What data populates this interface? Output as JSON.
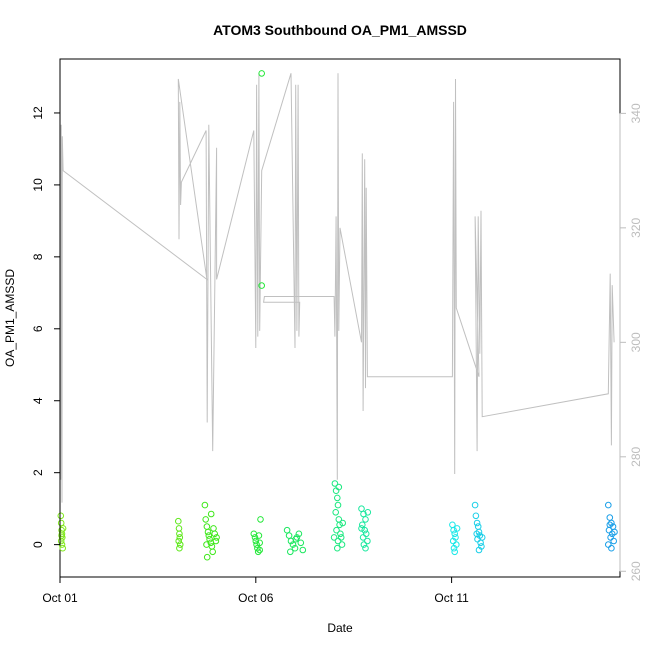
{
  "chart_data": {
    "type": "scatter",
    "title": "ATOM3 Southbound OA_PM1_AMSSD",
    "xlabel": "Date",
    "ylabel": "OA_PM1_AMSSD",
    "y2label": "",
    "xlim": [
      0.0,
      14.3
    ],
    "ylim": [
      -0.9,
      13.5
    ],
    "y2lim": [
      259,
      349.5
    ],
    "x_ticks": [
      {
        "pos": 0,
        "label": "Oct 01"
      },
      {
        "pos": 5,
        "label": "Oct 06"
      },
      {
        "pos": 10,
        "label": "Oct 11"
      }
    ],
    "y_ticks": [
      0,
      2,
      4,
      6,
      8,
      10,
      12
    ],
    "y2_ticks": [
      260,
      280,
      300,
      320,
      340
    ],
    "colors": {
      "secondary_line": "#c0c0c0",
      "right_axis": "#bdbdbd"
    },
    "points": [
      {
        "x": 0.02,
        "y": 0.8,
        "color": "#7fe81a"
      },
      {
        "x": 0.03,
        "y": 0.6,
        "color": "#7fe81a"
      },
      {
        "x": 0.04,
        "y": 0.4,
        "color": "#7fe81a"
      },
      {
        "x": 0.05,
        "y": 0.3,
        "color": "#7fe81a"
      },
      {
        "x": 0.06,
        "y": 0.2,
        "color": "#7fe81a"
      },
      {
        "x": 0.03,
        "y": 0.1,
        "color": "#7fe81a"
      },
      {
        "x": 0.05,
        "y": 0.0,
        "color": "#7fe81a"
      },
      {
        "x": 0.07,
        "y": -0.1,
        "color": "#7fe81a"
      },
      {
        "x": 0.04,
        "y": 0.25,
        "color": "#7fe81a"
      },
      {
        "x": 0.08,
        "y": 0.45,
        "color": "#7fe81a"
      },
      {
        "x": 3.02,
        "y": 0.65,
        "color": "#5ee81a"
      },
      {
        "x": 3.04,
        "y": 0.45,
        "color": "#5ee81a"
      },
      {
        "x": 3.05,
        "y": 0.3,
        "color": "#5ee81a"
      },
      {
        "x": 3.06,
        "y": 0.2,
        "color": "#5ee81a"
      },
      {
        "x": 3.03,
        "y": 0.1,
        "color": "#5ee81a"
      },
      {
        "x": 3.07,
        "y": 0.0,
        "color": "#5ee81a"
      },
      {
        "x": 3.05,
        "y": -0.1,
        "color": "#5ee81a"
      },
      {
        "x": 3.7,
        "y": 1.1,
        "color": "#3ee81a"
      },
      {
        "x": 3.72,
        "y": 0.7,
        "color": "#3ee81a"
      },
      {
        "x": 3.75,
        "y": 0.5,
        "color": "#3ee81a"
      },
      {
        "x": 3.78,
        "y": 0.35,
        "color": "#3ee81a"
      },
      {
        "x": 3.8,
        "y": 0.25,
        "color": "#3ee81a"
      },
      {
        "x": 3.82,
        "y": 0.15,
        "color": "#3ee81a"
      },
      {
        "x": 3.85,
        "y": 0.05,
        "color": "#3ee81a"
      },
      {
        "x": 3.88,
        "y": -0.05,
        "color": "#3ee81a"
      },
      {
        "x": 3.9,
        "y": -0.2,
        "color": "#3ee81a"
      },
      {
        "x": 3.76,
        "y": -0.35,
        "color": "#3ee81a"
      },
      {
        "x": 3.92,
        "y": 0.45,
        "color": "#3ee81a"
      },
      {
        "x": 3.95,
        "y": 0.3,
        "color": "#3ee81a"
      },
      {
        "x": 3.98,
        "y": 0.1,
        "color": "#3ee81a"
      },
      {
        "x": 4.0,
        "y": 0.2,
        "color": "#3ee81a"
      },
      {
        "x": 3.86,
        "y": 0.85,
        "color": "#3ee81a"
      },
      {
        "x": 3.74,
        "y": 0.0,
        "color": "#3ee81a"
      },
      {
        "x": 4.95,
        "y": 0.3,
        "color": "#25e83a"
      },
      {
        "x": 4.98,
        "y": 0.2,
        "color": "#25e83a"
      },
      {
        "x": 5.0,
        "y": 0.1,
        "color": "#25e83a"
      },
      {
        "x": 5.02,
        "y": 0.0,
        "color": "#25e83a"
      },
      {
        "x": 5.04,
        "y": -0.1,
        "color": "#25e83a"
      },
      {
        "x": 5.06,
        "y": -0.2,
        "color": "#25e83a"
      },
      {
        "x": 5.08,
        "y": 0.25,
        "color": "#25e83a"
      },
      {
        "x": 5.1,
        "y": 0.05,
        "color": "#25e83a"
      },
      {
        "x": 5.12,
        "y": 0.7,
        "color": "#25e83a"
      },
      {
        "x": 5.15,
        "y": 13.1,
        "color": "#25e83a"
      },
      {
        "x": 5.15,
        "y": 7.2,
        "color": "#25e83a"
      },
      {
        "x": 5.1,
        "y": -0.15,
        "color": "#25e83a"
      },
      {
        "x": 5.8,
        "y": 0.4,
        "color": "#1ae85e"
      },
      {
        "x": 5.85,
        "y": 0.25,
        "color": "#1ae85e"
      },
      {
        "x": 5.9,
        "y": 0.1,
        "color": "#1ae85e"
      },
      {
        "x": 5.95,
        "y": 0.0,
        "color": "#1ae85e"
      },
      {
        "x": 6.0,
        "y": -0.1,
        "color": "#1ae85e"
      },
      {
        "x": 6.05,
        "y": 0.2,
        "color": "#1ae85e"
      },
      {
        "x": 6.1,
        "y": 0.3,
        "color": "#1ae85e"
      },
      {
        "x": 6.15,
        "y": 0.05,
        "color": "#1ae85e"
      },
      {
        "x": 6.2,
        "y": -0.15,
        "color": "#1ae85e"
      },
      {
        "x": 5.88,
        "y": -0.2,
        "color": "#1ae85e"
      },
      {
        "x": 6.02,
        "y": 0.15,
        "color": "#1ae85e"
      },
      {
        "x": 7.02,
        "y": 1.7,
        "color": "#1ae87f"
      },
      {
        "x": 7.05,
        "y": 1.5,
        "color": "#1ae87f"
      },
      {
        "x": 7.08,
        "y": 1.3,
        "color": "#1ae87f"
      },
      {
        "x": 7.1,
        "y": 1.1,
        "color": "#1ae87f"
      },
      {
        "x": 7.04,
        "y": 0.9,
        "color": "#1ae87f"
      },
      {
        "x": 7.12,
        "y": 0.7,
        "color": "#1ae87f"
      },
      {
        "x": 7.14,
        "y": 0.55,
        "color": "#1ae87f"
      },
      {
        "x": 7.06,
        "y": 0.4,
        "color": "#1ae87f"
      },
      {
        "x": 7.16,
        "y": 0.3,
        "color": "#1ae87f"
      },
      {
        "x": 7.18,
        "y": 0.2,
        "color": "#1ae87f"
      },
      {
        "x": 7.1,
        "y": 0.1,
        "color": "#1ae87f"
      },
      {
        "x": 7.2,
        "y": 0.0,
        "color": "#1ae87f"
      },
      {
        "x": 7.08,
        "y": -0.1,
        "color": "#1ae87f"
      },
      {
        "x": 7.0,
        "y": 0.2,
        "color": "#1ae87f"
      },
      {
        "x": 7.22,
        "y": 0.6,
        "color": "#1ae87f"
      },
      {
        "x": 7.12,
        "y": 1.6,
        "color": "#1ae87f"
      },
      {
        "x": 7.7,
        "y": 1.0,
        "color": "#1ae89f"
      },
      {
        "x": 7.75,
        "y": 0.85,
        "color": "#1ae89f"
      },
      {
        "x": 7.8,
        "y": 0.7,
        "color": "#1ae89f"
      },
      {
        "x": 7.72,
        "y": 0.55,
        "color": "#1ae89f"
      },
      {
        "x": 7.78,
        "y": 0.4,
        "color": "#1ae89f"
      },
      {
        "x": 7.82,
        "y": 0.3,
        "color": "#1ae89f"
      },
      {
        "x": 7.74,
        "y": 0.2,
        "color": "#1ae89f"
      },
      {
        "x": 7.85,
        "y": 0.1,
        "color": "#1ae89f"
      },
      {
        "x": 7.76,
        "y": 0.0,
        "color": "#1ae89f"
      },
      {
        "x": 7.8,
        "y": -0.1,
        "color": "#1ae89f"
      },
      {
        "x": 7.7,
        "y": 0.45,
        "color": "#1ae89f"
      },
      {
        "x": 7.86,
        "y": 0.9,
        "color": "#1ae89f"
      },
      {
        "x": 10.02,
        "y": 0.55,
        "color": "#1ae8e8"
      },
      {
        "x": 10.05,
        "y": 0.4,
        "color": "#1ae8e8"
      },
      {
        "x": 10.08,
        "y": 0.3,
        "color": "#1ae8e8"
      },
      {
        "x": 10.1,
        "y": 0.2,
        "color": "#1ae8e8"
      },
      {
        "x": 10.04,
        "y": 0.1,
        "color": "#1ae8e8"
      },
      {
        "x": 10.12,
        "y": 0.0,
        "color": "#1ae8e8"
      },
      {
        "x": 10.06,
        "y": -0.1,
        "color": "#1ae8e8"
      },
      {
        "x": 10.14,
        "y": 0.45,
        "color": "#1ae8e8"
      },
      {
        "x": 10.08,
        "y": -0.2,
        "color": "#1ae8e8"
      },
      {
        "x": 10.6,
        "y": 1.1,
        "color": "#1acfe8"
      },
      {
        "x": 10.62,
        "y": 0.8,
        "color": "#1acfe8"
      },
      {
        "x": 10.65,
        "y": 0.6,
        "color": "#1acfe8"
      },
      {
        "x": 10.68,
        "y": 0.5,
        "color": "#1acfe8"
      },
      {
        "x": 10.7,
        "y": 0.35,
        "color": "#1acfe8"
      },
      {
        "x": 10.72,
        "y": 0.25,
        "color": "#1acfe8"
      },
      {
        "x": 10.66,
        "y": 0.15,
        "color": "#1acfe8"
      },
      {
        "x": 10.74,
        "y": 0.05,
        "color": "#1acfe8"
      },
      {
        "x": 10.76,
        "y": -0.05,
        "color": "#1acfe8"
      },
      {
        "x": 10.7,
        "y": -0.15,
        "color": "#1acfe8"
      },
      {
        "x": 10.64,
        "y": 0.3,
        "color": "#1acfe8"
      },
      {
        "x": 10.78,
        "y": 0.2,
        "color": "#1acfe8"
      },
      {
        "x": 14.0,
        "y": 1.1,
        "color": "#1a9fe8"
      },
      {
        "x": 14.04,
        "y": 0.75,
        "color": "#1a9fe8"
      },
      {
        "x": 14.08,
        "y": 0.6,
        "color": "#1a9fe8"
      },
      {
        "x": 14.12,
        "y": 0.5,
        "color": "#1a9fe8"
      },
      {
        "x": 14.02,
        "y": 0.4,
        "color": "#1a9fe8"
      },
      {
        "x": 14.1,
        "y": 0.3,
        "color": "#1a9fe8"
      },
      {
        "x": 14.06,
        "y": 0.2,
        "color": "#1a9fe8"
      },
      {
        "x": 14.14,
        "y": 0.1,
        "color": "#1a9fe8"
      },
      {
        "x": 14.0,
        "y": 0.0,
        "color": "#1a9fe8"
      },
      {
        "x": 14.08,
        "y": -0.1,
        "color": "#1a9fe8"
      },
      {
        "x": 14.16,
        "y": 0.35,
        "color": "#1a9fe8"
      },
      {
        "x": 14.04,
        "y": 0.55,
        "color": "#1a9fe8"
      }
    ],
    "secondary_series": {
      "axis": "right",
      "x": [
        0.0,
        0.02,
        0.03,
        0.05,
        0.06,
        0.08,
        3.75,
        3.02,
        3.04,
        3.06,
        3.08,
        3.1,
        3.73,
        3.76,
        3.8,
        3.9,
        4.0,
        4.0,
        4.95,
        5.0,
        5.02,
        5.05,
        5.08,
        5.1,
        5.15,
        5.9,
        6.0,
        6.02,
        6.05,
        6.08,
        6.1,
        6.12,
        5.2,
        5.22,
        7.0,
        7.02,
        7.05,
        7.08,
        7.1,
        7.12,
        7.15,
        7.7,
        7.72,
        7.74,
        7.78,
        7.8,
        7.82,
        7.85,
        10.02,
        10.05,
        10.08,
        10.1,
        10.12,
        10.7,
        10.6,
        10.65,
        10.68,
        10.72,
        10.75,
        10.78,
        14.0,
        14.05,
        14.08,
        14.1,
        14.15
      ],
      "y": [
        300,
        276,
        338,
        272,
        336,
        330,
        311,
        346,
        318,
        342,
        324,
        328,
        337,
        286,
        338,
        281,
        334,
        311,
        337,
        299,
        345,
        301,
        347,
        302,
        330,
        347,
        299,
        345,
        302,
        345,
        301,
        307,
        307,
        308,
        308,
        301,
        322,
        276,
        347,
        302,
        320,
        300,
        333,
        288,
        332,
        292,
        327,
        294,
        294,
        342,
        277,
        346,
        306,
        294,
        322,
        281,
        322,
        298,
        323,
        287,
        291,
        312,
        282,
        310,
        300
      ]
    }
  }
}
